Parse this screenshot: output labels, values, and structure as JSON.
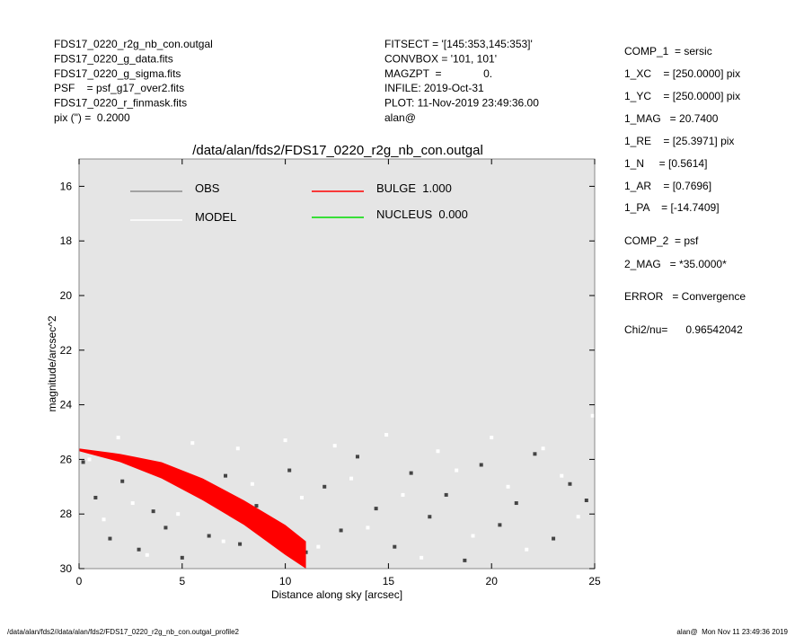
{
  "header": {
    "left": [
      "FDS17_0220_r2g_nb_con.outgal",
      "FDS17_0220_g_data.fits",
      "FDS17_0220_g_sigma.fits",
      "PSF    = psf_g17_over2.fits",
      "FDS17_0220_r_finmask.fits",
      "pix (\") =  0.2000"
    ],
    "middle": [
      "FITSECT = '[145:353,145:353]'",
      "CONVBOX = '101, 101'",
      "MAGZPT  =              0.",
      "INFILE: 2019-Oct-31",
      "PLOT: 11-Nov-2019 23:49:36.00",
      "alan@"
    ]
  },
  "right_panel": [
    "COMP_1  = sersic",
    "1_XC    = [250.0000] pix",
    "1_YC    = [250.0000] pix",
    "1_MAG   = 20.7400",
    "1_RE    = [25.3971] pix",
    "1_N     = [0.5614]",
    "1_AR    = [0.7696]",
    "1_PA    = [-14.7409]",
    "COMP_2  = psf",
    "2_MAG   = *35.0000*",
    "ERROR   = Convergence",
    "Chi2/nu=      0.96542042"
  ],
  "footer": {
    "left": "/data/alan/fds2//data/alan/fds2/FDS17_0220_r2g_nb_con.outgal_profile2",
    "right": "alan@  Mon Nov 11 23:49:36 2019"
  },
  "chart_data": {
    "type": "scatter",
    "title": "/data/alan/fds2/FDS17_0220_r2g_nb_con.outgal",
    "x_label": "Distance along sky [arcsec]",
    "y_label": "magnitude/arcsec^2",
    "xlim": [
      0,
      25
    ],
    "xticks": [
      0,
      5,
      10,
      15,
      20,
      25
    ],
    "ylim": [
      30,
      15
    ],
    "yticks": [
      16,
      18,
      20,
      22,
      24,
      26,
      28,
      30
    ],
    "background": "#e5e5e5",
    "series": [
      {
        "name": "OBS",
        "color": "#8c8c8c",
        "point_color": "#444444",
        "x": [
          0.2,
          0.8,
          1.5,
          2.1,
          2.9,
          3.6,
          4.2,
          5.0,
          5.7,
          6.3,
          7.1,
          7.8,
          8.6,
          9.4,
          10.2,
          11.0,
          11.9,
          12.7,
          13.5,
          14.4,
          15.3,
          16.1,
          17.0,
          17.8,
          18.7,
          19.5,
          20.4,
          21.2,
          22.1,
          23.0,
          23.8,
          24.6
        ],
        "values": [
          26.1,
          27.4,
          28.9,
          26.8,
          29.3,
          27.9,
          28.5,
          29.6,
          27.2,
          28.8,
          26.6,
          29.1,
          27.7,
          28.3,
          26.4,
          29.4,
          27.0,
          28.6,
          25.9,
          27.8,
          29.2,
          26.5,
          28.1,
          27.3,
          29.7,
          26.2,
          28.4,
          27.6,
          25.8,
          28.9,
          26.9,
          27.5
        ]
      },
      {
        "name": "MODEL",
        "color": "#ffffff",
        "point_color": "#ffffff",
        "x": [
          0.5,
          1.2,
          1.9,
          2.6,
          3.3,
          4.0,
          4.8,
          5.5,
          6.2,
          7.0,
          7.7,
          8.4,
          9.2,
          10.0,
          10.8,
          11.6,
          12.4,
          13.2,
          14.0,
          14.9,
          15.7,
          16.6,
          17.4,
          18.3,
          19.1,
          20.0,
          20.8,
          21.7,
          22.5,
          23.4,
          24.2,
          24.9
        ],
        "values": [
          26.0,
          28.2,
          25.2,
          27.6,
          29.5,
          26.3,
          28.0,
          25.4,
          27.1,
          29.0,
          25.6,
          26.9,
          28.7,
          25.3,
          27.4,
          29.2,
          25.5,
          26.7,
          28.5,
          25.1,
          27.3,
          29.6,
          25.7,
          26.4,
          28.8,
          25.2,
          27.0,
          29.3,
          25.6,
          26.6,
          28.1,
          24.4
        ]
      },
      {
        "name": "BULGE  1.000",
        "color": "#ff0000",
        "band": true,
        "x": [
          0,
          2,
          4,
          6,
          8,
          10,
          11
        ],
        "values": [
          25.6,
          25.8,
          26.1,
          26.7,
          27.5,
          28.4,
          29.0
        ],
        "lower": [
          25.7,
          26.1,
          26.7,
          27.5,
          28.4,
          29.5,
          30.0
        ]
      },
      {
        "name": "NUCLEUS  0.000",
        "color": "#00dd00",
        "x": [],
        "values": []
      }
    ]
  }
}
